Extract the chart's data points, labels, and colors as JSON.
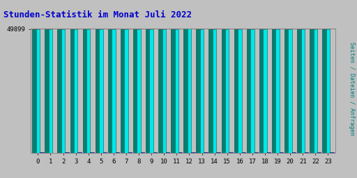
{
  "title": "Stunden-Statistik im Monat Juli 2022",
  "title_color": "#0000cc",
  "title_fontsize": 9,
  "categories": [
    0,
    1,
    2,
    3,
    4,
    5,
    6,
    7,
    8,
    9,
    10,
    11,
    12,
    13,
    14,
    15,
    16,
    17,
    18,
    19,
    20,
    21,
    22,
    23
  ],
  "ylabel_text": "Seiten / Dateien / Anfragen",
  "ylabel_color": "#008080",
  "ytick_label": "49899",
  "background_outer": "#c0c0c0",
  "background_inner": "#c0c0c0",
  "cyan_color": "#00e8e8",
  "teal_color": "#008070",
  "blue_color": "#0000ee",
  "bar_width": 0.3,
  "pages": [
    49750,
    49900,
    49820,
    49870,
    49855,
    49845,
    49845,
    49870,
    49860,
    49860,
    49820,
    49810,
    49980,
    49835,
    49870,
    49860,
    49845,
    49845,
    49810,
    49800,
    49880,
    49825,
    49845,
    49820
  ],
  "files": [
    49740,
    49890,
    49810,
    49860,
    49845,
    49835,
    49835,
    49860,
    49850,
    49850,
    49810,
    49800,
    49960,
    49825,
    49860,
    49850,
    49835,
    49835,
    49800,
    49790,
    49870,
    49815,
    49835,
    49810
  ],
  "requests": [
    200,
    150,
    200,
    200,
    200,
    200,
    250,
    230,
    220,
    200,
    210,
    270,
    400,
    210,
    220,
    200,
    200,
    200,
    190,
    210,
    240,
    200,
    210,
    190
  ],
  "ymin": 0,
  "ymax": 50100,
  "ytick_pos": 49899
}
